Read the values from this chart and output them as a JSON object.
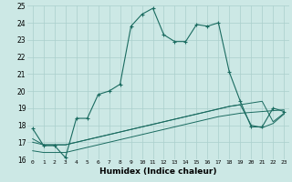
{
  "xlabel": "Humidex (Indice chaleur)",
  "background_color": "#cce8e5",
  "grid_color": "#aacfcc",
  "line_color": "#1a6b60",
  "xlim": [
    -0.5,
    23.5
  ],
  "ylim": [
    16,
    25
  ],
  "yticks": [
    16,
    17,
    18,
    19,
    20,
    21,
    22,
    23,
    24,
    25
  ],
  "xticks": [
    0,
    1,
    2,
    3,
    4,
    5,
    6,
    7,
    8,
    9,
    10,
    11,
    12,
    13,
    14,
    15,
    16,
    17,
    18,
    19,
    20,
    21,
    22,
    23
  ],
  "line1_x": [
    0,
    1,
    2,
    3,
    4,
    5,
    6,
    7,
    8,
    9,
    10,
    11,
    12,
    13,
    14,
    15,
    16,
    17,
    18,
    19,
    20,
    21,
    22,
    23
  ],
  "line1_y": [
    17.8,
    16.8,
    16.8,
    16.1,
    18.4,
    18.4,
    19.8,
    20.0,
    20.4,
    23.8,
    24.5,
    24.85,
    23.3,
    22.9,
    22.9,
    23.9,
    23.8,
    24.0,
    21.1,
    19.4,
    17.9,
    17.9,
    19.0,
    18.8
  ],
  "line2_x": [
    0,
    1,
    2,
    3,
    4,
    5,
    6,
    7,
    8,
    9,
    10,
    11,
    12,
    13,
    14,
    15,
    16,
    17,
    18,
    19,
    20,
    21,
    22,
    23
  ],
  "line2_y": [
    17.0,
    16.85,
    16.85,
    16.85,
    17.0,
    17.15,
    17.3,
    17.45,
    17.6,
    17.75,
    17.9,
    18.05,
    18.2,
    18.35,
    18.5,
    18.65,
    18.8,
    18.95,
    19.1,
    19.2,
    19.3,
    19.4,
    18.2,
    18.7
  ],
  "line3_x": [
    0,
    1,
    2,
    3,
    4,
    5,
    6,
    7,
    8,
    9,
    10,
    11,
    12,
    13,
    14,
    15,
    16,
    17,
    18,
    19,
    20,
    21,
    22,
    23
  ],
  "line3_y": [
    16.5,
    16.4,
    16.4,
    16.4,
    16.55,
    16.7,
    16.85,
    17.0,
    17.15,
    17.3,
    17.45,
    17.6,
    17.75,
    17.9,
    18.05,
    18.2,
    18.35,
    18.5,
    18.6,
    18.7,
    18.75,
    18.8,
    18.85,
    18.9
  ],
  "line4_x": [
    0,
    1,
    2,
    3,
    4,
    5,
    6,
    7,
    8,
    9,
    10,
    11,
    12,
    13,
    14,
    15,
    16,
    17,
    18,
    19,
    20,
    21,
    22,
    23
  ],
  "line4_y": [
    17.2,
    16.85,
    16.85,
    16.85,
    17.0,
    17.15,
    17.3,
    17.45,
    17.6,
    17.75,
    17.9,
    18.05,
    18.2,
    18.35,
    18.5,
    18.65,
    18.8,
    18.95,
    19.1,
    19.2,
    18.0,
    17.85,
    18.1,
    18.65
  ]
}
